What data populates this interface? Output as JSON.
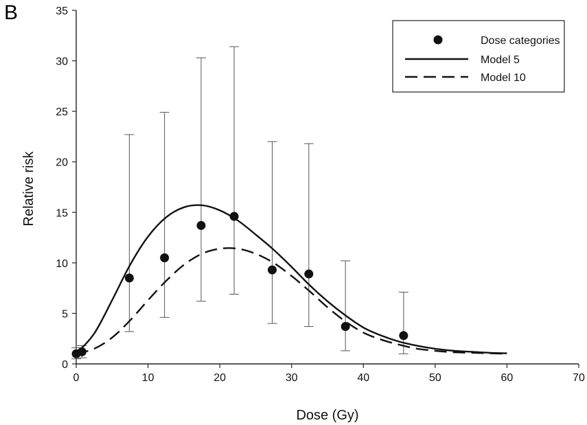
{
  "panel_label": "B",
  "chart_data": {
    "type": "scatter",
    "xlabel": "Dose (Gy)",
    "ylabel": "Relative risk",
    "xlim": [
      0,
      70
    ],
    "ylim": [
      0,
      35
    ],
    "xticks": [
      0,
      10,
      20,
      30,
      40,
      50,
      60,
      70
    ],
    "yticks": [
      0,
      5,
      10,
      15,
      20,
      25,
      30,
      35
    ],
    "xtick_labels": [
      "0",
      "10",
      "20",
      "30",
      "40",
      "50",
      "60",
      "70"
    ],
    "ytick_labels": [
      "0",
      "5",
      "10",
      "15",
      "20",
      "25",
      "30",
      "35"
    ],
    "grid": false,
    "legend_position": "top-right",
    "legend": [
      {
        "label": "Dose categories",
        "style": "marker"
      },
      {
        "label": "Model 5",
        "style": "solid"
      },
      {
        "label": "Model 10",
        "style": "dashed"
      }
    ],
    "series": [
      {
        "name": "Dose categories",
        "type": "scatter",
        "x": [
          0,
          0.8,
          7.4,
          12.3,
          17.4,
          22.0,
          27.3,
          32.4,
          37.5,
          45.6
        ],
        "y": [
          1.0,
          1.2,
          8.5,
          10.5,
          13.7,
          14.6,
          9.3,
          8.9,
          3.7,
          2.8
        ],
        "yerr_low": [
          0.5,
          0.6,
          3.2,
          4.6,
          6.2,
          6.9,
          4.0,
          3.7,
          1.3,
          1.0
        ],
        "yerr_high": [
          1.6,
          1.8,
          22.7,
          24.9,
          30.3,
          31.4,
          22.0,
          21.8,
          10.2,
          7.1
        ]
      },
      {
        "name": "Model 5",
        "type": "line",
        "style": "solid",
        "x": [
          0,
          2.5,
          5,
          7.5,
          10,
          12.5,
          15,
          17.5,
          20,
          22.5,
          25,
          27.5,
          30,
          32.5,
          35,
          37.5,
          40,
          42.5,
          45,
          47.5,
          50,
          52.5,
          55,
          57.5,
          60
        ],
        "y": [
          1.0,
          3.0,
          6.3,
          9.8,
          12.6,
          14.5,
          15.5,
          15.7,
          15.2,
          14.2,
          12.8,
          11.3,
          9.6,
          7.8,
          6.2,
          4.8,
          3.6,
          2.8,
          2.2,
          1.8,
          1.5,
          1.3,
          1.2,
          1.1,
          1.05
        ]
      },
      {
        "name": "Model 10",
        "type": "line",
        "style": "dashed",
        "x": [
          0,
          2.5,
          5,
          7.5,
          10,
          12.5,
          15,
          17.5,
          20,
          22.5,
          25,
          27.5,
          30,
          32.5,
          35,
          37.5,
          40,
          42.5,
          45,
          47.5,
          50,
          52.5,
          55,
          57.5,
          60
        ],
        "y": [
          1.0,
          1.5,
          2.6,
          4.3,
          6.3,
          8.2,
          9.8,
          10.9,
          11.4,
          11.4,
          10.9,
          10.0,
          8.7,
          7.2,
          5.6,
          4.2,
          3.1,
          2.4,
          1.9,
          1.5,
          1.3,
          1.15,
          1.1,
          1.05,
          1.0
        ]
      }
    ]
  }
}
